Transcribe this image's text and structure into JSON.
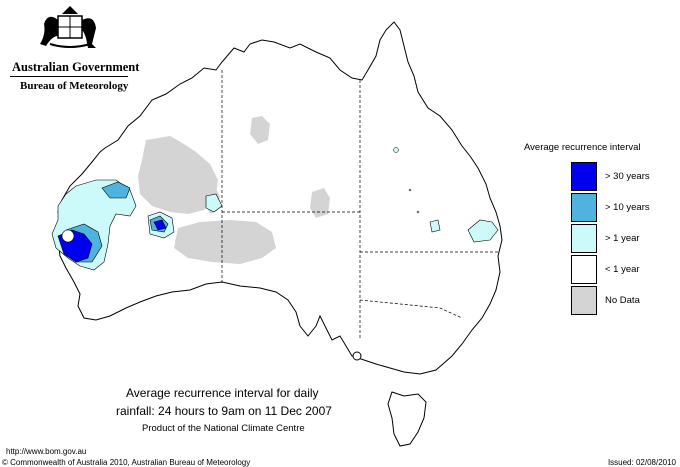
{
  "header": {
    "organisation": "Australian Government",
    "bureau": "Bureau of Meteorology",
    "crest_icon": "commonwealth-coat-of-arms-icon"
  },
  "legend": {
    "title": "Average recurrence interval",
    "items": [
      {
        "label": "> 30 years",
        "color": "#0000ee"
      },
      {
        "label": "> 10 years",
        "color": "#4fb3e0"
      },
      {
        "label": "> 1 year",
        "color": "#ccfafa"
      },
      {
        "label": "< 1 year",
        "color": "#ffffff"
      },
      {
        "label": "No Data",
        "color": "#d4d4d4"
      }
    ]
  },
  "caption": {
    "line1": "Average recurrence interval for daily",
    "line2": "rainfall: 24 hours to 9am on 11 Dec 2007",
    "line3": "Product of the National Climate Centre"
  },
  "footer": {
    "url": "http://www.bom.gov.au",
    "copyright": "© Commonwealth of Australia 2010, Australian Bureau of Meteorology",
    "issued": "Issued: 02/08/2010"
  }
}
